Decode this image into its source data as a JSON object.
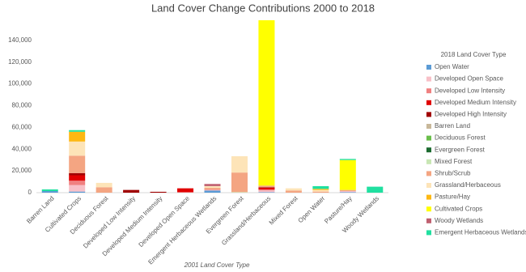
{
  "chart_data": {
    "type": "stacked-bar",
    "title": "Land Cover Change Contributions 2000 to 2018",
    "x_label": "2001 Land Cover Type",
    "legend_title": "2018 Land Cover Type",
    "legend": "right",
    "grid": false,
    "categories": [
      "Barren Land",
      "Cultivated Crops",
      "Deciduous Forest",
      "Developed Low Intensity",
      "Developed Medium Intensity",
      "Developed Open Space",
      "Emergent Herbaceous Wetlands",
      "Evergreen Forest",
      "Grassland/Herbaceous",
      "Mixed Forest",
      "Open Water",
      "Pasture/Hay",
      "Woody Wetlands"
    ],
    "ylim": [
      0,
      160000
    ],
    "yticks": [
      0,
      {
        "value": 20000,
        "label": "20,000"
      },
      {
        "value": 40000,
        "label": "40,000"
      },
      {
        "value": 60000,
        "label": "60,000"
      },
      {
        "value": 80000,
        "label": "80,000"
      },
      {
        "value": 100000,
        "label": "100,000"
      },
      {
        "value": 120000,
        "label": "120,000"
      },
      {
        "value": 140000,
        "label": "140,000"
      }
    ],
    "series": [
      {
        "name": "Open Water",
        "color": "#5b9bd5",
        "values": [
          1500,
          1000,
          0,
          0,
          0,
          0,
          2000,
          0,
          500,
          0,
          0,
          500,
          0
        ]
      },
      {
        "name": "Developed Open Space",
        "color": "#f8c0c8",
        "values": [
          0,
          6000,
          0,
          0,
          0,
          0,
          500,
          0,
          1500,
          0,
          0,
          1000,
          0
        ]
      },
      {
        "name": "Developed Low Intensity",
        "color": "#f08080",
        "values": [
          0,
          4000,
          0,
          0,
          0,
          500,
          500,
          0,
          1000,
          0,
          0,
          0,
          0
        ]
      },
      {
        "name": "Developed Medium Intensity",
        "color": "#e00000",
        "values": [
          0,
          5000,
          0,
          0,
          0,
          3500,
          0,
          0,
          1500,
          0,
          0,
          0,
          0
        ]
      },
      {
        "name": "Developed High Intensity",
        "color": "#a00000",
        "values": [
          0,
          2000,
          0,
          2500,
          800,
          0,
          0,
          0,
          500,
          0,
          0,
          0,
          0
        ]
      },
      {
        "name": "Barren Land",
        "color": "#c8b89a",
        "values": [
          0,
          0,
          0,
          0,
          0,
          0,
          0,
          0,
          0,
          0,
          0,
          0,
          0
        ]
      },
      {
        "name": "Deciduous Forest",
        "color": "#6abf4b",
        "values": [
          0,
          0,
          0,
          0,
          0,
          0,
          0,
          0,
          0,
          0,
          0,
          0,
          0
        ]
      },
      {
        "name": "Evergreen Forest",
        "color": "#1c6b30",
        "values": [
          0,
          0,
          0,
          0,
          0,
          0,
          0,
          0,
          0,
          0,
          0,
          0,
          0
        ]
      },
      {
        "name": "Mixed Forest",
        "color": "#c8e6b4",
        "values": [
          0,
          0,
          0,
          0,
          0,
          0,
          0,
          500,
          0,
          0,
          0,
          0,
          0
        ]
      },
      {
        "name": "Shrub/Scrub",
        "color": "#f4a582",
        "values": [
          0,
          16000,
          5000,
          0,
          0,
          0,
          1500,
          18000,
          1500,
          2000,
          1000,
          1000,
          0
        ]
      },
      {
        "name": "Grassland/Herbaceous",
        "color": "#fde4b8",
        "values": [
          0,
          13000,
          4000,
          0,
          0,
          0,
          1500,
          15000,
          0,
          2000,
          1500,
          0,
          0
        ]
      },
      {
        "name": "Pasture/Hay",
        "color": "#fdb813",
        "values": [
          0,
          9000,
          0,
          0,
          0,
          0,
          0,
          0,
          0,
          0,
          1000,
          0,
          0
        ]
      },
      {
        "name": "Cultivated Crops",
        "color": "#ffff00",
        "values": [
          0,
          0,
          0,
          0,
          0,
          0,
          0,
          0,
          152000,
          0,
          0,
          27500,
          0
        ]
      },
      {
        "name": "Woody Wetlands",
        "color": "#c06070",
        "values": [
          0,
          0,
          0,
          0,
          0,
          0,
          2000,
          0,
          0,
          0,
          0,
          0,
          0
        ]
      },
      {
        "name": "Emergent Herbaceous Wetlands",
        "color": "#20e0a0",
        "values": [
          1500,
          1500,
          0,
          0,
          0,
          0,
          0,
          0,
          0,
          0,
          2500,
          1000,
          5500
        ]
      }
    ]
  }
}
